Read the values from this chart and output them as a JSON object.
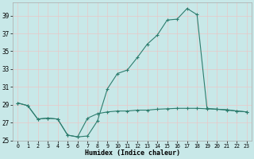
{
  "x": [
    0,
    1,
    2,
    3,
    4,
    5,
    6,
    7,
    8,
    9,
    10,
    11,
    12,
    13,
    14,
    15,
    16,
    17,
    18,
    19,
    20,
    21,
    22,
    23
  ],
  "line1": [
    29.2,
    28.9,
    27.4,
    27.5,
    27.4,
    25.6,
    25.4,
    25.5,
    27.2,
    30.8,
    32.5,
    32.9,
    34.3,
    35.8,
    36.8,
    38.5,
    38.6,
    39.8,
    39.1,
    28.6,
    28.5,
    28.4,
    28.3,
    28.2
  ],
  "line2": [
    29.2,
    28.9,
    27.4,
    27.5,
    27.4,
    25.6,
    25.4,
    27.5,
    28.0,
    28.2,
    28.3,
    28.3,
    28.4,
    28.4,
    28.5,
    28.55,
    28.6,
    28.6,
    28.6,
    28.55,
    28.5,
    28.45,
    28.3,
    28.2
  ],
  "line_color": "#2e7d6e",
  "bg_color": "#c8e8e8",
  "grid_color": "#b0d8d8",
  "xlabel": "Humidex (Indice chaleur)",
  "ylim": [
    25,
    40
  ],
  "xlim": [
    -0.5,
    23.5
  ],
  "yticks": [
    25,
    27,
    29,
    31,
    33,
    35,
    37,
    39
  ],
  "xticks": [
    0,
    1,
    2,
    3,
    4,
    5,
    6,
    7,
    8,
    9,
    10,
    11,
    12,
    13,
    14,
    15,
    16,
    17,
    18,
    19,
    20,
    21,
    22,
    23
  ]
}
